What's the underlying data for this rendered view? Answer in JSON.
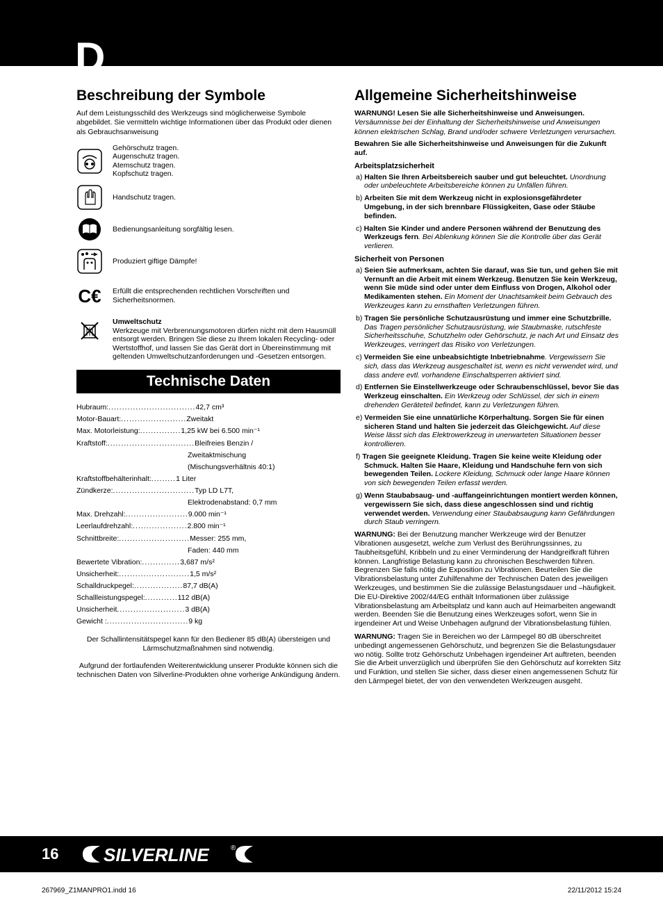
{
  "header": {
    "letter": "D"
  },
  "left": {
    "symbolsTitle": "Beschreibung der Symbole",
    "symbolsIntro": "Auf dem Leistungsschild des Werkzeugs sind möglicherweise Symbole abgebildet. Sie vermitteln wichtige Informationen über das Produkt oder dienen als Gebrauchsanweisung",
    "iconTexts": {
      "ppe": "Gehörschutz tragen.\nAugenschutz tragen.\nAtemschutz tragen.\nKopfschutz tragen.",
      "gloves": "Handschutz tragen.",
      "manual": "Bedienungsanleitung sorgfältig lesen.",
      "fumes": "Produziert giftige Dämpfe!",
      "ce": "Erfüllt die entsprechenden rechtlichen Vorschriften und Sicherheitsnormen.",
      "envTitle": "Umweltschutz",
      "envBody": "Werkzeuge mit Verbrennungsmotoren dürfen nicht mit dem Hausmüll entsorgt werden. Bringen Sie diese zu Ihrem lokalen Recycling- oder Wertstoffhof, und lassen Sie das Gerät dort in Übereinstimmung mit geltenden Umweltschutzanforderungen und -Gesetzen entsorgen."
    },
    "techTitle": "Technische Daten",
    "specs": [
      {
        "label": "Hubraum:",
        "dots": "................................",
        "value": "42,7 cm³"
      },
      {
        "label": "Motor-Bauart: ",
        "dots": "........................",
        "value": "Zweitakt"
      },
      {
        "label": "Max. Motorleistung: ",
        "dots": "...............",
        "value": "1,25 kW bei 6.500 min⁻¹"
      },
      {
        "label": "Kraftstoff:",
        "dots": "................................",
        "value": "Bleifreies Benzin /"
      },
      {
        "label": "",
        "dots": "",
        "value": "Zweitaktmischung",
        "indent": true
      },
      {
        "label": "",
        "dots": "",
        "value": "(Mischungsverhältnis 40:1)",
        "indent": true
      },
      {
        "label": "Kraftstoffbehälterinhalt: ",
        "dots": ".........",
        "value": "1 Liter"
      },
      {
        "label": "Zündkerze:",
        "dots": "..............................",
        "value": "Typ LD L7T,"
      },
      {
        "label": "",
        "dots": "",
        "value": "Elektrodenabstand: 0,7 mm",
        "indent": true
      },
      {
        "label": "Max. Drehzahl:",
        "dots": ".......................",
        "value": "9.000 min⁻¹"
      },
      {
        "label": "Leerlaufdrehzahl:",
        "dots": "....................",
        "value": "2.800 min⁻¹"
      },
      {
        "label": "Schnittbreite: ",
        "dots": "..........................",
        "value": "Messer: 255 mm,"
      },
      {
        "label": "",
        "dots": "",
        "value": "Faden: 440 mm",
        "indent": true
      },
      {
        "label": "Bewertete Vibration: ",
        "dots": "..............",
        "value": "3,687 m/s²"
      },
      {
        "label": "Unsicherheit:",
        "dots": "..........................",
        "value": "1,5 m/s²"
      },
      {
        "label": "Schalldruckpegel: ",
        "dots": "..................",
        "value": "87,7 dB(A)"
      },
      {
        "label": "Schallleistungspegel: ",
        "dots": "............",
        "value": "112 dB(A)"
      },
      {
        "label": "Unsicherheit ",
        "dots": ".........................",
        "value": " 3 dB(A)"
      },
      {
        "label": "Gewicht : ",
        "dots": "..............................",
        "value": " 9 kg"
      }
    ],
    "note1": "Der Schallintensitätspegel kann für den Bediener 85 dB(A) übersteigen und Lärmschutzmaßnahmen sind notwendig.",
    "note2": "Aufgrund der fortlaufenden Weiterentwicklung unserer Produkte können sich die technischen Daten von Silverline-Produkten ohne vorherige Ankündigung ändern."
  },
  "right": {
    "title": "Allgemeine Sicherheitshinweise",
    "warn1b": "WARNUNG! Lesen Sie alle Sicherheitshinweise und Anweisungen.",
    "warn1i": "Versäumnisse bei der Einhaltung der Sicherheitshinweise und Anweisungen können elektrischen Schlag, Brand und/oder schwere Verletzungen verursachen.",
    "warn2": "Bewahren Sie alle Sicherheitshinweise und Anweisungen für die Zukunft auf.",
    "sub1": "Arbeitsplatzsicherheit",
    "a1b": "Halten Sie Ihren Arbeitsbereich sauber und gut beleuchtet.",
    "a1i": "Unordnung oder unbeleuchtete Arbeitsbereiche können zu Unfällen führen.",
    "a2": "Arbeiten Sie mit dem Werkzeug nicht in explosionsgefährdeter Umgebung, in der sich brennbare Flüssigkeiten, Gase oder Stäube befinden.",
    "a3b": "Halten Sie Kinder und andere Personen während der Benutzung des Werkzeugs fern",
    "a3i": ". Bei Ablenkung können Sie die Kontrolle über das Gerät verlieren.",
    "sub2": "Sicherheit von Personen",
    "b1b": "Seien Sie aufmerksam, achten Sie darauf, was Sie tun, und gehen Sie mit Vernunft an die Arbeit mit einem Werkzeug. Benutzen Sie kein Werkzeug, wenn Sie müde sind oder unter dem Einfluss von Drogen, Alkohol oder Medikamenten stehen.",
    "b1i": " Ein Moment der Unachtsamkeit beim Gebrauch des Werkzeuges kann zu ernsthaften Verletzungen führen.",
    "b2b": "Tragen Sie persönliche Schutzausrüstung und immer eine Schutzbrille.",
    "b2i": " Das Tragen persönlicher Schutzausrüstung, wie Staubmaske, rutschfeste Sicherheitsschuhe, Schutzhelm oder Gehörschutz, je nach Art und Einsatz des Werkzeuges, verringert das Risiko von Verletzungen.",
    "b3b": "Vermeiden Sie eine unbeabsichtigte Inbetriebnahme",
    "b3i": ". Vergewissern Sie sich, dass das Werkzeug ausgeschaltet ist, wenn es nicht verwendet wird, und dass andere evtl. vorhandene Einschaltsperren aktiviert sind.",
    "b4b": "Entfernen Sie Einstellwerkzeuge oder Schraubenschlüssel, bevor Sie das Werkzeug einschalten.",
    "b4i": " Ein Werkzeug oder Schlüssel, der sich in einem drehenden Geräteteil befindet, kann zu Verletzungen führen.",
    "b5b": "Vermeiden Sie eine unnatürliche Körperhaltung. Sorgen Sie für einen sicheren Stand und halten Sie jederzeit das Gleichgewicht.",
    "b5i": " Auf diese Weise lässt sich das Elektrowerkzeug in unerwarteten Situationen besser kontrollieren.",
    "b6b": "Tragen Sie geeignete Kleidung. Tragen Sie keine weite Kleidung oder Schmuck. Halten Sie Haare, Kleidung und Handschuhe fern von sich bewegenden Teilen.",
    "b6i": " Lockere Kleidung, Schmuck oder lange Haare können von sich bewegenden Teilen erfasst werden.",
    "b7b": "Wenn Staubabsaug- und -auffangeinrichtungen montiert werden können, vergewissern Sie sich, dass diese angeschlossen sind und richtig verwendet werden.",
    "b7i": " Verwendung einer Staubabsaugung kann Gefährdungen durch Staub verringern.",
    "para1b": "WARNUNG:",
    "para1": " Bei der Benutzung mancher Werkzeuge wird der Benutzer Vibrationen ausgesetzt, welche zum Verlust des Berührungssinnes, zu Taubheitsgefühl, Kribbeln und zu einer Verminderung der Handgreifkraft führen können. Langfristige Belastung kann zu chronischen Beschwerden führen. Begrenzen Sie falls nötig die Exposition zu Vibrationen. Beurteilen Sie die Vibrationsbelastung unter Zuhilfenahme der Technischen Daten des jeweiligen Werkzeuges, und bestimmen Sie die zulässige Belastungsdauer und –häufigkeit. Die EU-Direktive 2002/44/EG enthält Informationen über zulässige Vibrationsbelastung am Arbeitsplatz und kann auch auf Heimarbeiten angewandt werden. Beenden Sie die Benutzung eines Werkzeuges sofort, wenn Sie in irgendeiner Art und Weise Unbehagen aufgrund der Vibrationsbelastung fühlen.",
    "para2b": "WARNUNG:",
    "para2": " Tragen Sie in Bereichen wo der Lärmpegel 80 dB überschreitet unbedingt angemessenen Gehörschutz, und begrenzen Sie die Belastungsdauer wo nötig. Sollte trotz Gehörschutz Unbehagen irgendeiner Art auftreten, beenden Sie die Arbeit unverzüglich und überprüfen Sie den Gehörschutz auf korrekten Sitz und Funktion, und stellen Sie sicher, dass dieser einen angemessenen Schutz für den Lärmpegel bietet, der von den verwendeten Werkzeugen ausgeht."
  },
  "footer": {
    "page": "16",
    "logo": "SILVERLINE",
    "file": "267969_Z1MANPRO1.indd   16",
    "date": "22/11/2012   15:24"
  }
}
